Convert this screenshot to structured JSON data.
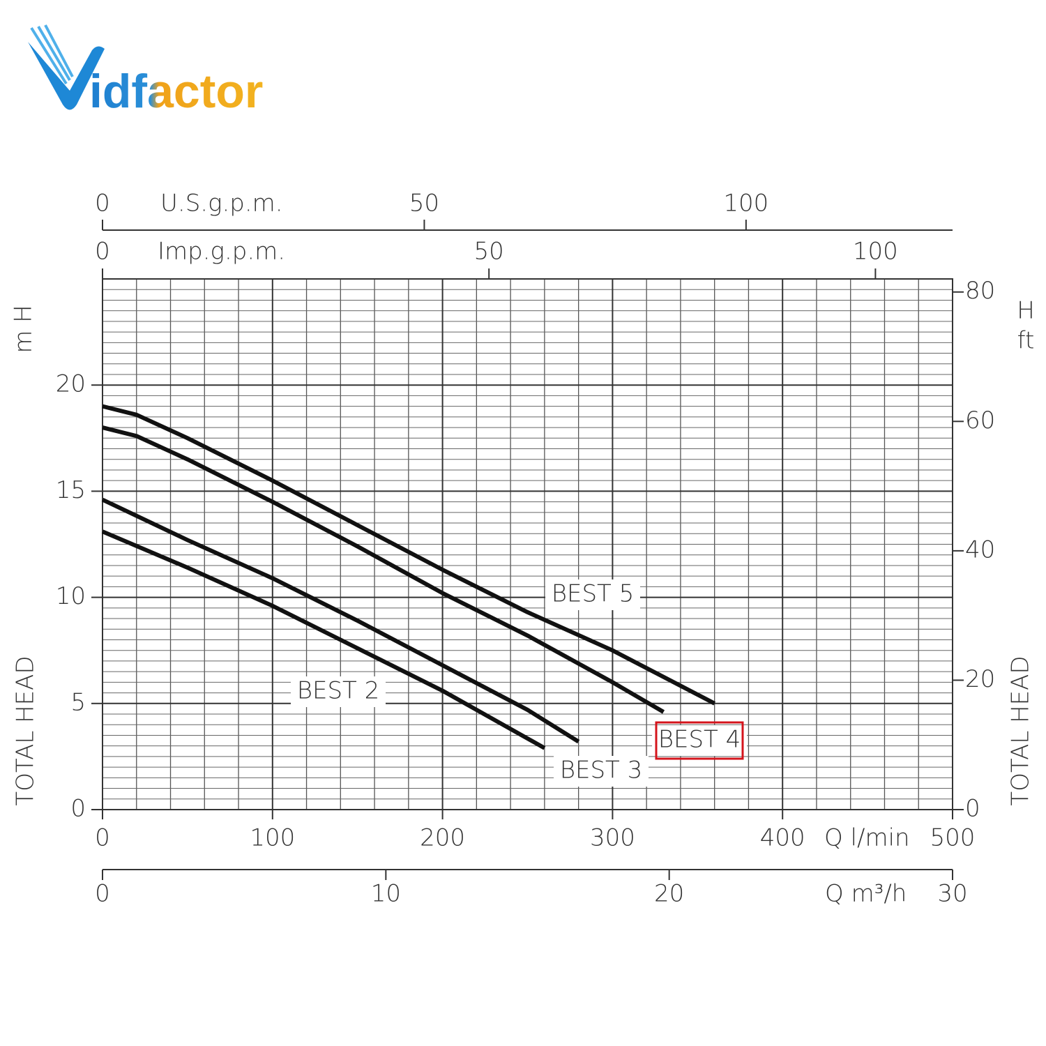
{
  "logo": "idfactor",
  "chart_data": {
    "type": "line",
    "ylabel": "TOTAL HEAD",
    "y_unit": {
      "symbol": "H",
      "unit": "m"
    },
    "y2label": "TOTAL HEAD",
    "y2_unit": {
      "symbol": "H",
      "unit": "ft"
    },
    "xlabel": "Q l/min",
    "xlim": [
      0,
      500
    ],
    "xticks": [
      0,
      100,
      200,
      300,
      400,
      500
    ],
    "ylim": [
      0,
      25
    ],
    "yticks": [
      0,
      5,
      10,
      15,
      20
    ],
    "y2lim": [
      0,
      82.02
    ],
    "y2ticks": [
      0,
      20,
      40,
      60,
      80
    ],
    "grid": true,
    "secondary_x_axes": [
      {
        "label": "U.S.g.p.m.",
        "xlim": [
          0,
          132.09
        ],
        "xticks": [
          0,
          50,
          100
        ]
      },
      {
        "label": "Imp.g.p.m.",
        "xlim": [
          0,
          109.98
        ],
        "xticks": [
          0,
          50,
          100
        ]
      },
      {
        "label": "Q m³/h",
        "xlim": [
          0,
          30
        ],
        "xticks": [
          0,
          10,
          20,
          30
        ]
      }
    ],
    "highlight_color": "#d4141c",
    "series": [
      {
        "name": "BEST 5",
        "color": "#111111",
        "x": [
          0,
          20,
          50,
          100,
          150,
          200,
          250,
          300,
          360
        ],
        "values": [
          19.0,
          18.6,
          17.5,
          15.5,
          13.4,
          11.3,
          9.3,
          7.5,
          5.0
        ]
      },
      {
        "name": "BEST 2",
        "color": "#111111",
        "x": [
          0,
          50,
          100,
          150,
          200,
          260
        ],
        "values": [
          13.1,
          11.4,
          9.6,
          7.6,
          5.6,
          2.9
        ]
      },
      {
        "name": "BEST 3",
        "color": "#111111",
        "x": [
          0,
          50,
          100,
          150,
          200,
          250,
          280
        ],
        "values": [
          14.6,
          12.7,
          10.9,
          8.9,
          6.8,
          4.7,
          3.2
        ]
      },
      {
        "name": "BEST 4",
        "color": "#111111",
        "highlight": true,
        "x": [
          0,
          20,
          50,
          100,
          150,
          200,
          250,
          300,
          330
        ],
        "values": [
          18.0,
          17.6,
          16.5,
          14.5,
          12.4,
          10.2,
          8.2,
          6.0,
          4.6
        ]
      }
    ]
  }
}
